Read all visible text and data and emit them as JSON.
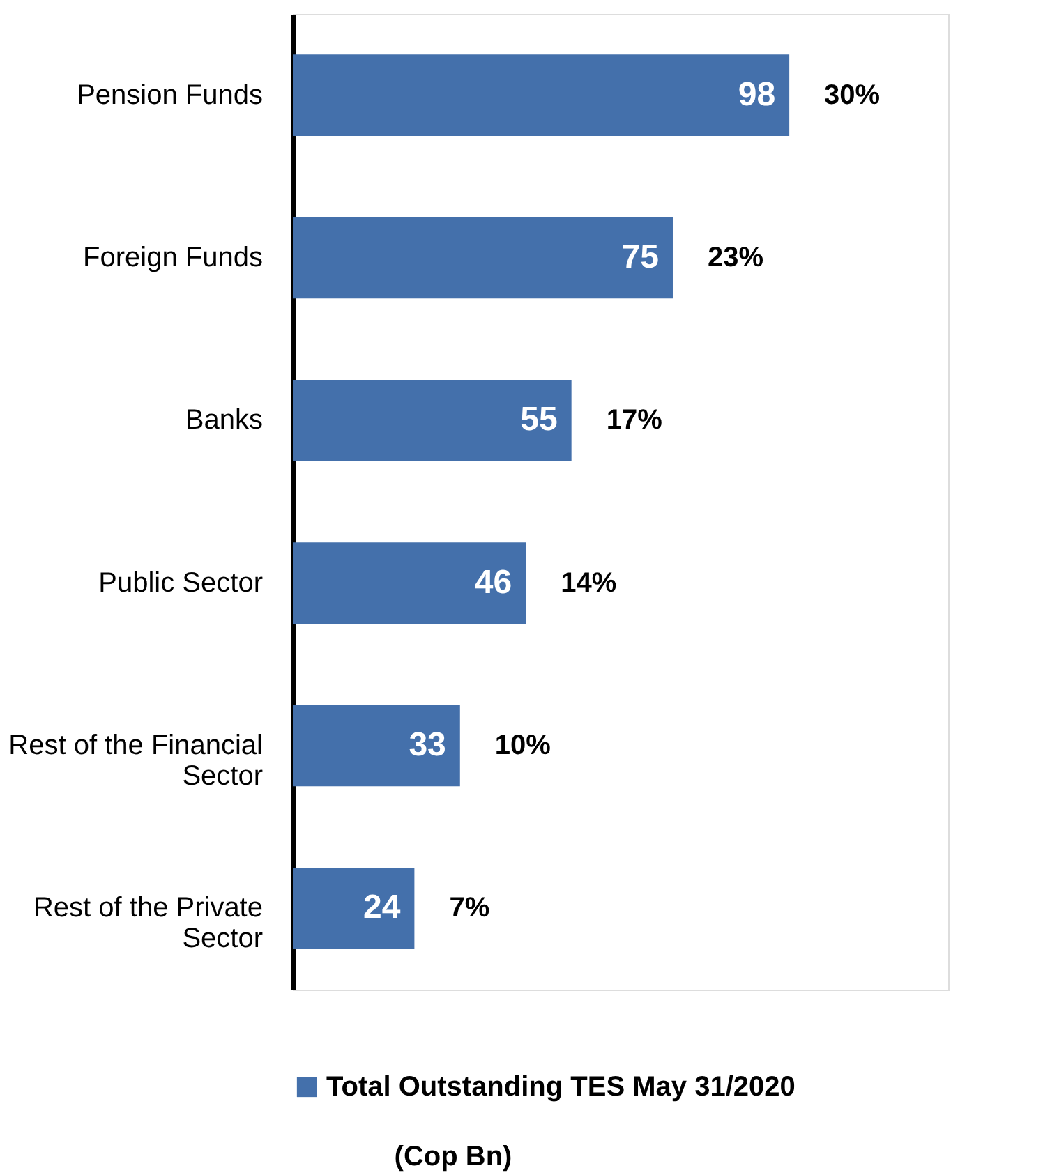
{
  "chart_data": {
    "type": "bar",
    "orientation": "horizontal",
    "categories": [
      "Pension Funds",
      "Foreign Funds",
      "Banks",
      "Public Sector",
      "Rest of the Financial Sector",
      "Rest of the Private Sector"
    ],
    "series": [
      {
        "name": "Total Outstanding TES May 31/2020",
        "color": "#4470ab",
        "values": [
          98,
          75,
          55,
          46,
          33,
          24
        ]
      }
    ],
    "data_labels": true,
    "legend": "bottom",
    "grid": false,
    "annotations": [
      "30%",
      "23%",
      "17%",
      "14%",
      "10%",
      "7%",
      "(Cop Bn)"
    ]
  }
}
